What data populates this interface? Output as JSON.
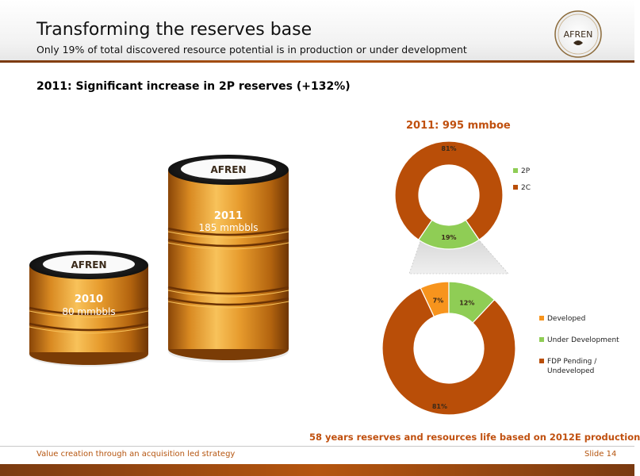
{
  "header": {
    "title": "Transforming the reserves base",
    "subtitle": "Only 19% of total discovered resource potential is in production or under development",
    "logo_text": "AFREN"
  },
  "main": {
    "section_heading": "2011: Significant increase in 2P reserves (+132%)",
    "barrels": [
      {
        "brand": "AFREN",
        "year": "2010",
        "value_text": "80 mmbbls",
        "value": 80
      },
      {
        "brand": "AFREN",
        "year": "2011",
        "value_text": "185 mmbbls",
        "value": 185
      }
    ],
    "footnote": "58 years reserves and resources life based on 2012E production"
  },
  "chart_data": [
    {
      "type": "pie",
      "title": "2011: 995 mmboe",
      "categories": [
        "2P",
        "2C"
      ],
      "values": [
        19,
        81
      ],
      "labels": [
        "19%",
        "81%"
      ],
      "colors": [
        "#8fcd55",
        "#b94e08"
      ],
      "legend_position": "right"
    },
    {
      "type": "pie",
      "title": "",
      "categories": [
        "Developed",
        "Under Development",
        "FDP Pending / Undeveloped"
      ],
      "values": [
        7,
        12,
        81
      ],
      "labels": [
        "7%",
        "12%",
        "81%"
      ],
      "colors": [
        "#f7941d",
        "#8fcd55",
        "#b94e08"
      ],
      "legend_position": "right"
    }
  ],
  "footer": {
    "left_text": "Value creation through an acquisition led strategy",
    "slide_number": "Slide 14"
  },
  "colors": {
    "accent": "#c0500f",
    "bar": "#b5550f",
    "green": "#8fcd55",
    "orange": "#f7941d",
    "dark_orange": "#b94e08"
  }
}
